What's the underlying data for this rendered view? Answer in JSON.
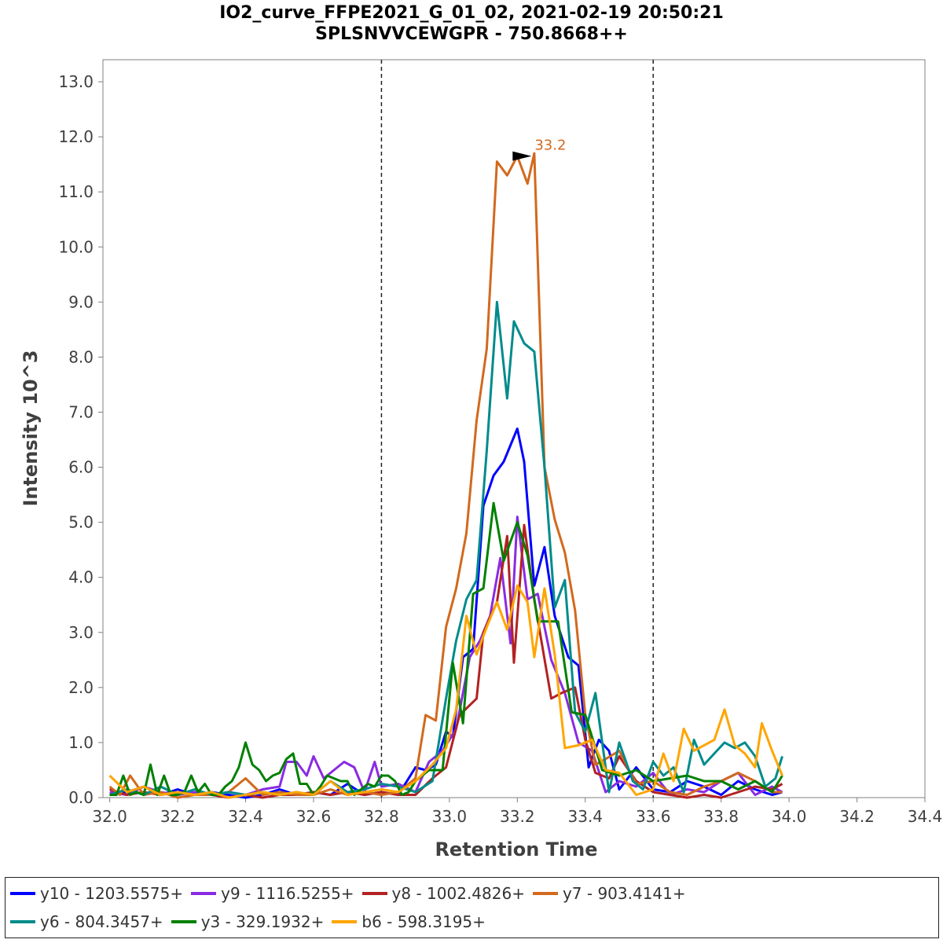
{
  "chart_data": {
    "type": "line",
    "title": "IO2_curve_FFPE2021_G_01_02, 2021-02-19 20:50:21",
    "subtitle": "SPLSNVVCEWGPR - 750.8668++",
    "xlabel": "Retention Time",
    "ylabel": "Intensity 10^3",
    "xlim": [
      31.98,
      34.4
    ],
    "ylim": [
      0,
      13.4
    ],
    "x_ticks": [
      "32.0",
      "32.2",
      "32.4",
      "32.6",
      "32.8",
      "33.0",
      "33.2",
      "33.4",
      "33.6",
      "33.8",
      "34.0",
      "34.2",
      "34.4"
    ],
    "y_ticks": [
      "0.0",
      "1.0",
      "2.0",
      "3.0",
      "4.0",
      "5.0",
      "6.0",
      "7.0",
      "8.0",
      "9.0",
      "10.0",
      "11.0",
      "12.0",
      "13.0"
    ],
    "grid": false,
    "legend_position": "bottom",
    "vertical_markers": [
      32.8,
      33.6
    ],
    "annotation": {
      "label": "33.2",
      "x": 33.2,
      "y": 11.65,
      "color": "#d2691e"
    },
    "series": [
      {
        "name": "y10 - 1203.5575+",
        "color": "#0000ff",
        "x": [
          32.0,
          32.05,
          32.1,
          32.15,
          32.2,
          32.25,
          32.3,
          32.35,
          32.4,
          32.45,
          32.5,
          32.55,
          32.6,
          32.65,
          32.7,
          32.75,
          32.8,
          32.85,
          32.9,
          32.93,
          32.96,
          32.99,
          33.01,
          33.04,
          33.07,
          33.1,
          33.13,
          33.16,
          33.2,
          33.22,
          33.25,
          33.28,
          33.31,
          33.35,
          33.38,
          33.41,
          33.44,
          33.47,
          33.5,
          33.55,
          33.6,
          33.65,
          33.7,
          33.75,
          33.8,
          33.85,
          33.9,
          33.95,
          33.98
        ],
        "y": [
          0.05,
          0.1,
          0.2,
          0.05,
          0.15,
          0.05,
          0.1,
          0.05,
          0.0,
          0.05,
          0.15,
          0.05,
          0.1,
          0.05,
          0.25,
          0.05,
          0.1,
          0.05,
          0.55,
          0.5,
          0.6,
          1.2,
          1.1,
          2.55,
          2.7,
          5.3,
          5.85,
          6.1,
          6.7,
          6.1,
          3.85,
          4.55,
          3.3,
          2.55,
          2.4,
          0.55,
          1.05,
          0.85,
          0.15,
          0.55,
          0.15,
          0.1,
          0.3,
          0.2,
          0.05,
          0.3,
          0.15,
          0.05,
          0.1
        ]
      },
      {
        "name": "y9 - 1116.5255+",
        "color": "#8a2be2",
        "x": [
          32.0,
          32.05,
          32.1,
          32.15,
          32.2,
          32.25,
          32.3,
          32.35,
          32.4,
          32.45,
          32.5,
          32.52,
          32.55,
          32.58,
          32.6,
          32.63,
          32.66,
          32.69,
          32.72,
          32.75,
          32.78,
          32.8,
          32.85,
          32.9,
          32.94,
          32.98,
          33.02,
          33.06,
          33.09,
          33.12,
          33.15,
          33.18,
          33.2,
          33.23,
          33.26,
          33.3,
          33.34,
          33.38,
          33.42,
          33.46,
          33.5,
          33.55,
          33.6,
          33.65,
          33.7,
          33.75,
          33.8,
          33.85,
          33.9,
          33.95,
          33.98
        ],
        "y": [
          0.1,
          0.05,
          0.2,
          0.1,
          0.05,
          0.1,
          0.05,
          0.1,
          0.05,
          0.15,
          0.2,
          0.65,
          0.65,
          0.4,
          0.75,
          0.35,
          0.5,
          0.65,
          0.55,
          0.1,
          0.65,
          0.2,
          0.25,
          0.1,
          0.65,
          0.85,
          1.25,
          2.55,
          2.85,
          3.3,
          4.35,
          2.8,
          5.1,
          3.6,
          3.7,
          2.5,
          1.9,
          1.0,
          0.85,
          0.1,
          0.3,
          0.2,
          0.45,
          0.05,
          0.15,
          0.1,
          0.3,
          0.45,
          0.05,
          0.2,
          0.1
        ]
      },
      {
        "name": "y8 - 1002.4826+",
        "color": "#b22222",
        "x": [
          32.0,
          32.05,
          32.1,
          32.15,
          32.2,
          32.25,
          32.3,
          32.35,
          32.4,
          32.45,
          32.5,
          32.55,
          32.6,
          32.65,
          32.7,
          32.75,
          32.8,
          32.85,
          32.9,
          32.95,
          32.99,
          33.03,
          33.08,
          33.1,
          33.14,
          33.17,
          33.19,
          33.22,
          33.25,
          33.3,
          33.33,
          33.37,
          33.4,
          33.43,
          33.47,
          33.5,
          33.55,
          33.6,
          33.65,
          33.7,
          33.75,
          33.8,
          33.85,
          33.9,
          33.95,
          33.98
        ],
        "y": [
          0.15,
          0.05,
          0.1,
          0.05,
          0.1,
          0.05,
          0.05,
          0.0,
          0.05,
          0.0,
          0.05,
          0.05,
          0.1,
          0.05,
          0.1,
          0.05,
          0.1,
          0.05,
          0.05,
          0.35,
          0.55,
          1.5,
          1.8,
          3.0,
          3.55,
          4.75,
          2.45,
          4.95,
          3.6,
          1.8,
          1.9,
          2.0,
          1.05,
          0.45,
          0.35,
          0.75,
          0.3,
          0.1,
          0.05,
          0.0,
          0.05,
          0.0,
          0.1,
          0.2,
          0.15,
          0.25
        ]
      },
      {
        "name": "y7 - 903.4141+",
        "color": "#d2691e",
        "x": [
          32.0,
          32.03,
          32.06,
          32.1,
          32.15,
          32.2,
          32.25,
          32.3,
          32.35,
          32.4,
          32.45,
          32.5,
          32.55,
          32.6,
          32.65,
          32.7,
          32.75,
          32.8,
          32.85,
          32.9,
          32.93,
          32.96,
          32.99,
          33.02,
          33.05,
          33.08,
          33.11,
          33.14,
          33.17,
          33.2,
          33.23,
          33.25,
          33.28,
          33.31,
          33.34,
          33.37,
          33.4,
          33.43,
          33.46,
          33.5,
          33.55,
          33.6,
          33.65,
          33.7,
          33.75,
          33.8,
          33.85,
          33.9,
          33.95,
          33.98
        ],
        "y": [
          0.2,
          0.05,
          0.4,
          0.05,
          0.1,
          0.0,
          0.05,
          0.05,
          0.1,
          0.35,
          0.05,
          0.1,
          0.05,
          0.05,
          0.15,
          0.05,
          0.1,
          0.05,
          0.1,
          0.35,
          1.5,
          1.4,
          3.1,
          3.8,
          4.8,
          6.85,
          8.15,
          11.55,
          11.3,
          11.65,
          11.15,
          11.7,
          6.0,
          5.05,
          4.45,
          3.4,
          1.5,
          0.6,
          0.7,
          0.85,
          0.25,
          0.3,
          0.1,
          0.05,
          0.2,
          0.3,
          0.45,
          0.3,
          0.1,
          0.1
        ]
      },
      {
        "name": "y6 - 804.3457+",
        "color": "#008b8b",
        "x": [
          32.0,
          32.05,
          32.1,
          32.15,
          32.2,
          32.25,
          32.3,
          32.35,
          32.4,
          32.45,
          32.5,
          32.55,
          32.6,
          32.65,
          32.7,
          32.75,
          32.8,
          32.85,
          32.9,
          32.95,
          32.99,
          33.02,
          33.05,
          33.08,
          33.11,
          33.14,
          33.17,
          33.19,
          33.22,
          33.25,
          33.28,
          33.31,
          33.34,
          33.37,
          33.4,
          33.43,
          33.47,
          33.5,
          33.54,
          33.57,
          33.6,
          33.63,
          33.66,
          33.69,
          33.72,
          33.75,
          33.78,
          33.81,
          33.84,
          33.87,
          33.9,
          33.93,
          33.96,
          33.98
        ],
        "y": [
          0.05,
          0.15,
          0.05,
          0.2,
          0.05,
          0.15,
          0.05,
          0.1,
          0.05,
          0.1,
          0.05,
          0.1,
          0.05,
          0.3,
          0.1,
          0.15,
          0.25,
          0.2,
          0.1,
          0.3,
          1.8,
          2.85,
          3.6,
          3.95,
          6.3,
          9.0,
          7.25,
          8.65,
          8.25,
          8.1,
          6.0,
          3.45,
          3.95,
          1.55,
          1.2,
          1.9,
          0.1,
          1.0,
          0.3,
          0.15,
          0.65,
          0.4,
          0.55,
          0.1,
          1.05,
          0.6,
          0.8,
          1.0,
          0.9,
          1.0,
          0.75,
          0.2,
          0.35,
          0.75
        ]
      },
      {
        "name": "y3 - 329.1932+",
        "color": "#008000",
        "x": [
          32.0,
          32.02,
          32.04,
          32.06,
          32.08,
          32.1,
          32.12,
          32.14,
          32.16,
          32.18,
          32.2,
          32.22,
          32.24,
          32.26,
          32.28,
          32.3,
          32.32,
          32.34,
          32.36,
          32.38,
          32.4,
          32.42,
          32.44,
          32.46,
          32.48,
          32.5,
          32.52,
          32.54,
          32.56,
          32.58,
          32.6,
          32.62,
          32.64,
          32.66,
          32.68,
          32.7,
          32.72,
          32.74,
          32.76,
          32.78,
          32.8,
          32.82,
          32.84,
          32.86,
          32.88,
          32.9,
          32.94,
          32.98,
          33.01,
          33.04,
          33.07,
          33.1,
          33.13,
          33.16,
          33.2,
          33.23,
          33.26,
          33.29,
          33.32,
          33.36,
          33.4,
          33.45,
          33.5,
          33.55,
          33.6,
          33.65,
          33.7,
          33.75,
          33.8,
          33.85,
          33.9,
          33.95,
          33.98
        ],
        "y": [
          0.05,
          0.05,
          0.4,
          0.05,
          0.1,
          0.05,
          0.6,
          0.05,
          0.4,
          0.05,
          0.05,
          0.1,
          0.4,
          0.1,
          0.25,
          0.05,
          0.05,
          0.2,
          0.3,
          0.55,
          1.0,
          0.6,
          0.5,
          0.3,
          0.4,
          0.45,
          0.7,
          0.8,
          0.25,
          0.25,
          0.05,
          0.2,
          0.4,
          0.35,
          0.3,
          0.3,
          0.05,
          0.15,
          0.25,
          0.2,
          0.4,
          0.4,
          0.3,
          0.05,
          0.1,
          0.3,
          0.5,
          0.5,
          2.45,
          1.35,
          3.7,
          3.8,
          5.35,
          4.3,
          5.0,
          4.4,
          3.2,
          3.2,
          3.2,
          1.55,
          1.5,
          0.5,
          0.4,
          0.5,
          0.3,
          0.35,
          0.4,
          0.3,
          0.3,
          0.15,
          0.3,
          0.1,
          0.4
        ]
      },
      {
        "name": "b6 - 598.3195+",
        "color": "#ffa500",
        "x": [
          32.0,
          32.05,
          32.1,
          32.15,
          32.2,
          32.25,
          32.3,
          32.35,
          32.4,
          32.45,
          32.5,
          32.55,
          32.6,
          32.65,
          32.7,
          32.75,
          32.8,
          32.85,
          32.9,
          32.95,
          32.99,
          33.02,
          33.05,
          33.08,
          33.11,
          33.14,
          33.17,
          33.2,
          33.23,
          33.25,
          33.28,
          33.31,
          33.34,
          33.38,
          33.42,
          33.46,
          33.5,
          33.55,
          33.6,
          33.63,
          33.66,
          33.69,
          33.72,
          33.75,
          33.78,
          33.81,
          33.84,
          33.87,
          33.9,
          33.92,
          33.95,
          33.98
        ],
        "y": [
          0.4,
          0.1,
          0.2,
          0.05,
          0.1,
          0.05,
          0.1,
          0.0,
          0.05,
          0.1,
          0.05,
          0.1,
          0.05,
          0.3,
          0.05,
          0.1,
          0.15,
          0.1,
          0.3,
          0.6,
          0.9,
          1.6,
          3.3,
          2.6,
          3.1,
          3.55,
          3.05,
          3.85,
          3.55,
          2.55,
          3.8,
          2.6,
          0.9,
          0.95,
          1.05,
          0.5,
          0.45,
          0.05,
          0.15,
          0.8,
          0.3,
          1.25,
          0.85,
          0.95,
          1.05,
          1.6,
          0.95,
          0.8,
          0.55,
          1.35,
          0.85,
          0.4
        ]
      }
    ]
  }
}
